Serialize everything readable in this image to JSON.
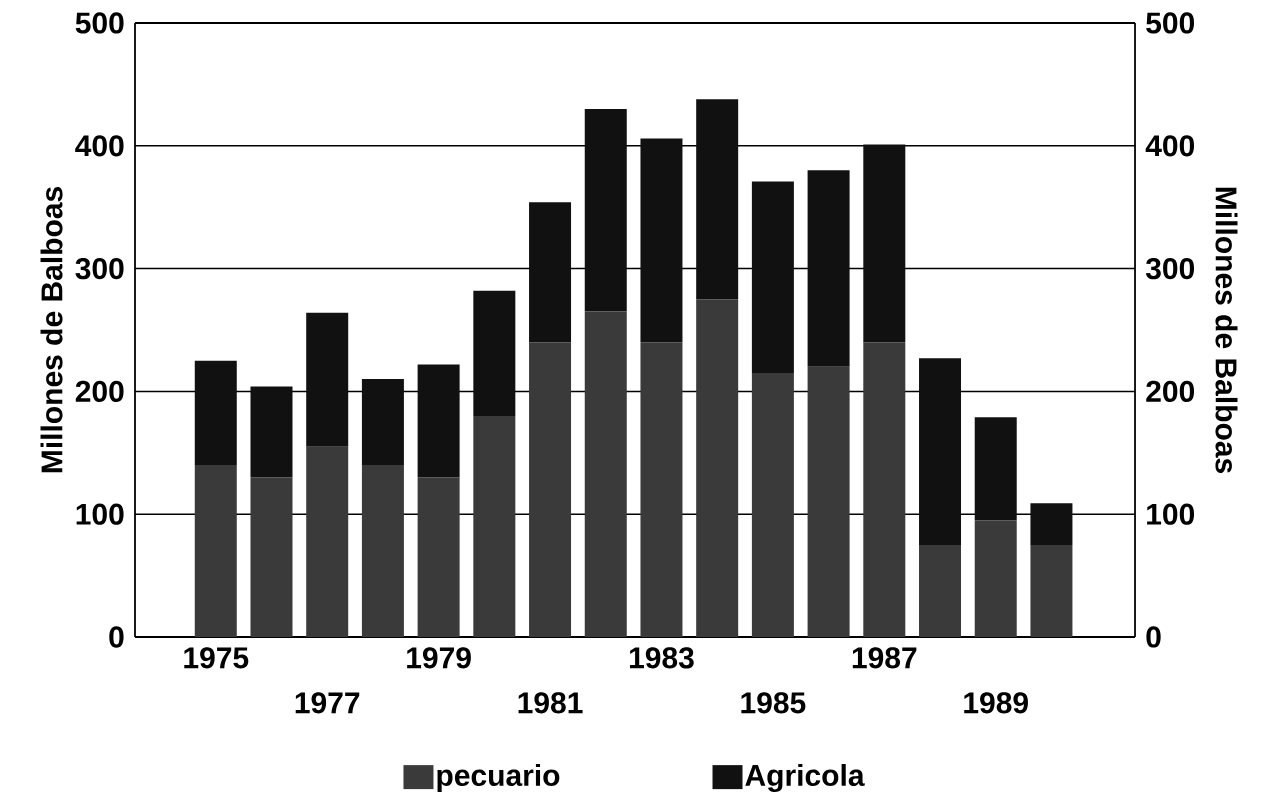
{
  "chart_data": {
    "type": "bar",
    "stacked": true,
    "categories": [
      "1975",
      null,
      "1977",
      null,
      "1979",
      null,
      "1981",
      null,
      "1983",
      null,
      "1985",
      null,
      "1987",
      null,
      "1989",
      null
    ],
    "series": [
      {
        "name": "pecuario",
        "color": "#3a3a3a",
        "values": [
          140,
          130,
          155,
          140,
          130,
          180,
          240,
          265,
          240,
          275,
          215,
          220,
          240,
          75,
          95,
          75
        ]
      },
      {
        "name": "Agricola",
        "color": "#111111",
        "values": [
          85,
          74,
          109,
          70,
          92,
          102,
          114,
          165,
          166,
          163,
          156,
          160,
          161,
          152,
          84,
          34
        ]
      }
    ],
    "ylabel": "Millones de Balboas",
    "y2label": "Millones de Balboas",
    "ylim": [
      0,
      500
    ],
    "yticks": [
      0,
      100,
      200,
      300,
      400,
      500
    ],
    "y2lim": [
      0,
      500
    ],
    "y2ticks": [
      0,
      100,
      200,
      300,
      400,
      500
    ],
    "grid": "y",
    "legend": "bottom"
  }
}
